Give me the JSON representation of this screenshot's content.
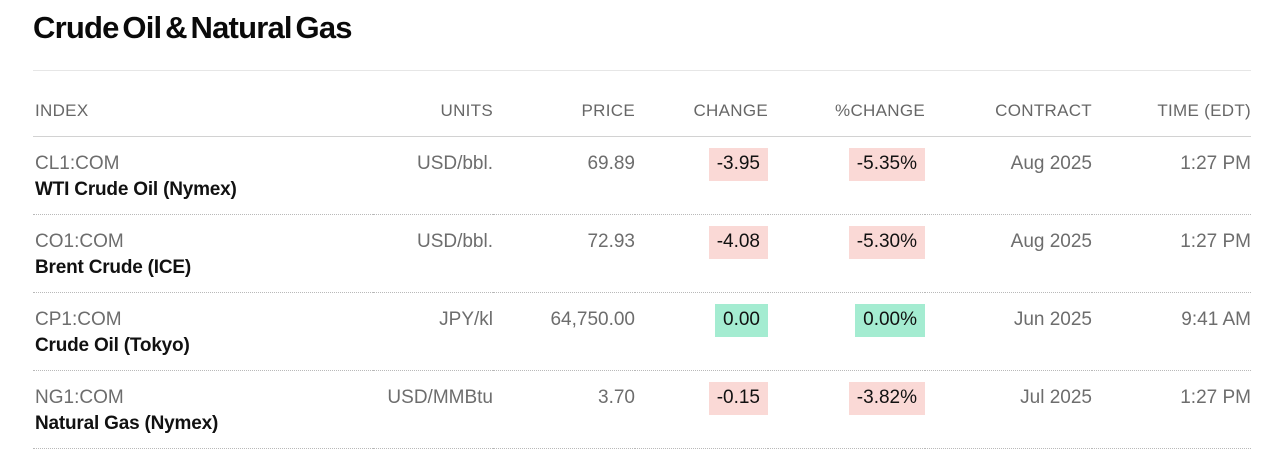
{
  "page": {
    "title": "Crude Oil & Natural Gas"
  },
  "table": {
    "columns": [
      {
        "key": "index",
        "label": "INDEX"
      },
      {
        "key": "units",
        "label": "UNITS"
      },
      {
        "key": "price",
        "label": "PRICE"
      },
      {
        "key": "change",
        "label": "CHANGE"
      },
      {
        "key": "pct_change",
        "label": "%CHANGE"
      },
      {
        "key": "contract",
        "label": "CONTRACT"
      },
      {
        "key": "time",
        "label": "TIME (EDT)"
      }
    ],
    "rows": [
      {
        "ticker": "CL1:COM",
        "name": "WTI Crude Oil (Nymex)",
        "units": "USD/bbl.",
        "price": "69.89",
        "change": "-3.95",
        "pct_change": "-5.35%",
        "direction": "down",
        "contract": "Aug 2025",
        "time": "1:27 PM"
      },
      {
        "ticker": "CO1:COM",
        "name": "Brent Crude (ICE)",
        "units": "USD/bbl.",
        "price": "72.93",
        "change": "-4.08",
        "pct_change": "-5.30%",
        "direction": "down",
        "contract": "Aug 2025",
        "time": "1:27 PM"
      },
      {
        "ticker": "CP1:COM",
        "name": "Crude Oil (Tokyo)",
        "units": "JPY/kl",
        "price": "64,750.00",
        "change": "0.00",
        "pct_change": "0.00%",
        "direction": "flat",
        "contract": "Jun 2025",
        "time": "9:41 AM"
      },
      {
        "ticker": "NG1:COM",
        "name": "Natural Gas (Nymex)",
        "units": "USD/MMBtu",
        "price": "3.70",
        "change": "-0.15",
        "pct_change": "-3.82%",
        "direction": "down",
        "contract": "Jul 2025",
        "time": "1:27 PM"
      }
    ]
  },
  "colors": {
    "negative_change_bg": "#fad9d6",
    "flat_change_bg": "#a4ecd1",
    "title_text": "#0a0a0a",
    "secondary_text": "#6d6d6d",
    "header_text": "#676767"
  }
}
